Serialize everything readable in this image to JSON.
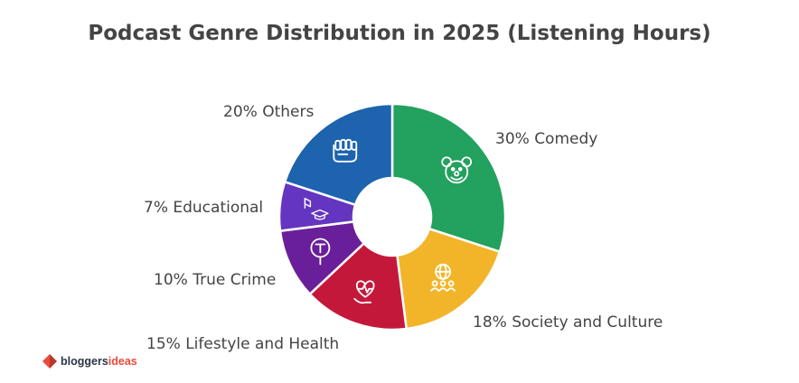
{
  "chart_data": {
    "type": "pie",
    "title": "Podcast Genre Distribution in 2025 (Listening Hours)",
    "slices": [
      {
        "label": "30% Comedy",
        "value": 30,
        "color": "#23a15e",
        "icon": "clown-face-icon"
      },
      {
        "label": "18% Society and Culture",
        "value": 18,
        "color": "#f2b52a",
        "icon": "globe-community-icon"
      },
      {
        "label": "15% Lifestyle and Health",
        "value": 15,
        "color": "#c4183a",
        "icon": "heart-health-icon"
      },
      {
        "label": "10% True Crime",
        "value": 10,
        "color": "#6a1f9a",
        "icon": "magnifier-icon"
      },
      {
        "label": "7% Educational",
        "value": 7,
        "color": "#6435c0",
        "icon": "education-icon"
      },
      {
        "label": "20% Others",
        "value": 20,
        "color": "#1d63ae",
        "icon": "fist-icon"
      }
    ]
  },
  "watermark": {
    "prefix": "bloggers",
    "suffix": "ideas"
  }
}
